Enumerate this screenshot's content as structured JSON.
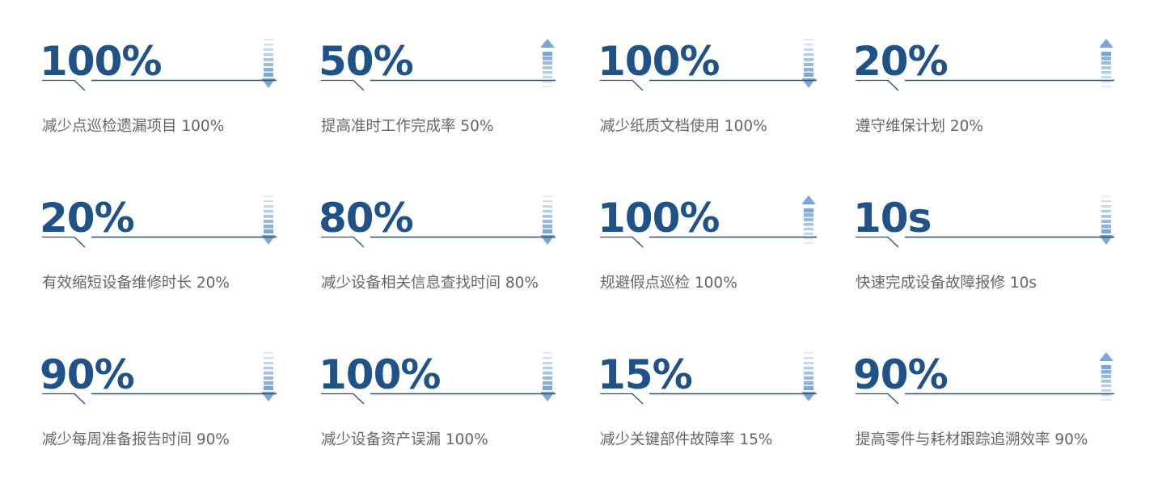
{
  "accent_color": "#1f5288",
  "arrow_color": "#7fa6d3",
  "cards": [
    {
      "value": "100%",
      "label": "减少点巡检遗漏项目 100%",
      "arrow": "down"
    },
    {
      "value": "50%",
      "label": "提高准时工作完成率 50%",
      "arrow": "up"
    },
    {
      "value": "100%",
      "label": "减少纸质文档使用 100%",
      "arrow": "down"
    },
    {
      "value": "20%",
      "label": "遵守维保计划 20%",
      "arrow": "up"
    },
    {
      "value": "20%",
      "label": "有效缩短设备维修时长 20%",
      "arrow": "down"
    },
    {
      "value": "80%",
      "label": "减少设备相关信息查找时间 80%",
      "arrow": "down"
    },
    {
      "value": "100%",
      "label": "规避假点巡检 100%",
      "arrow": "up"
    },
    {
      "value": "10s",
      "label": "快速完成设备故障报修 10s",
      "arrow": "down"
    },
    {
      "value": "90%",
      "label": "减少每周准备报告时间 90%",
      "arrow": "down"
    },
    {
      "value": "100%",
      "label": "减少设备资产误漏 100%",
      "arrow": "down"
    },
    {
      "value": "15%",
      "label": "减少关键部件故障率 15%",
      "arrow": "down"
    },
    {
      "value": "90%",
      "label": "提高零件与耗材跟踪追溯效率 90%",
      "arrow": "up"
    }
  ]
}
